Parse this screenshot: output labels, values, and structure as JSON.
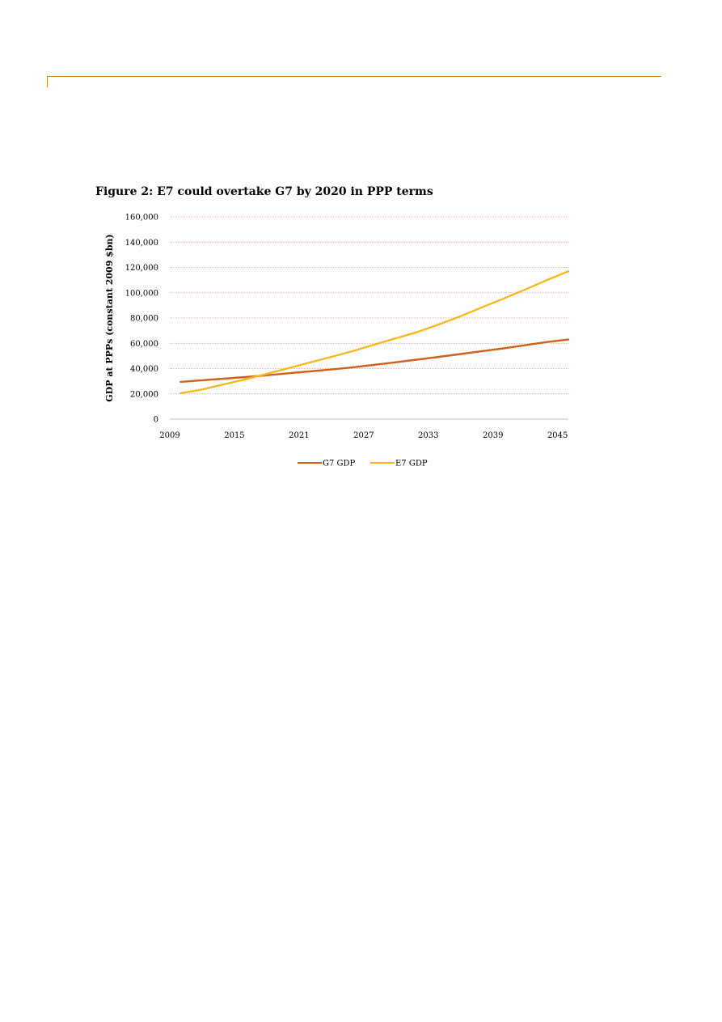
{
  "page": {
    "figure_title": "Figure 2: E7 could overtake G7 by 2020 in PPP terms"
  },
  "colors": {
    "header_rule": "#d08a2c",
    "gridline": "#d9a1a1",
    "g7": "#d35f1b",
    "e7": "#f5b91d"
  },
  "chart_data": {
    "type": "line",
    "title": "Figure 2: E7 could overtake G7 by 2020 in PPP terms",
    "ylabel": "GDP at PPPs (constant 2009 $bn)",
    "xlabel": "",
    "ylim": [
      0,
      160000
    ],
    "xlim": [
      2009,
      2046
    ],
    "yticks": [
      0,
      20000,
      40000,
      60000,
      80000,
      100000,
      120000,
      140000,
      160000
    ],
    "ytick_labels": [
      "0",
      "20,000",
      "40,000",
      "60,000",
      "80,000",
      "100,000",
      "120,000",
      "140,000",
      "160,000"
    ],
    "xticks": [
      2009,
      2015,
      2021,
      2027,
      2033,
      2039,
      2045
    ],
    "xtick_labels": [
      "2009",
      "2015",
      "2021",
      "2027",
      "2033",
      "2039",
      "2045"
    ],
    "grid": true,
    "legend_position": "bottom",
    "x": [
      2010,
      2012,
      2014,
      2016,
      2018,
      2020,
      2022,
      2024,
      2026,
      2028,
      2030,
      2032,
      2034,
      2036,
      2038,
      2040,
      2042,
      2044,
      2046
    ],
    "series": [
      {
        "name": "G7 GDP",
        "values": [
          29500,
          30800,
          32000,
          33300,
          34700,
          36300,
          37800,
          39300,
          41000,
          43000,
          45000,
          47200,
          49300,
          51500,
          53800,
          56000,
          58500,
          61000,
          63000
        ]
      },
      {
        "name": "E7 GDP",
        "values": [
          20500,
          23500,
          27500,
          31500,
          35800,
          40300,
          44800,
          49300,
          53800,
          59000,
          64000,
          69000,
          75000,
          81500,
          88500,
          95500,
          102500,
          110000,
          117000
        ]
      }
    ]
  }
}
